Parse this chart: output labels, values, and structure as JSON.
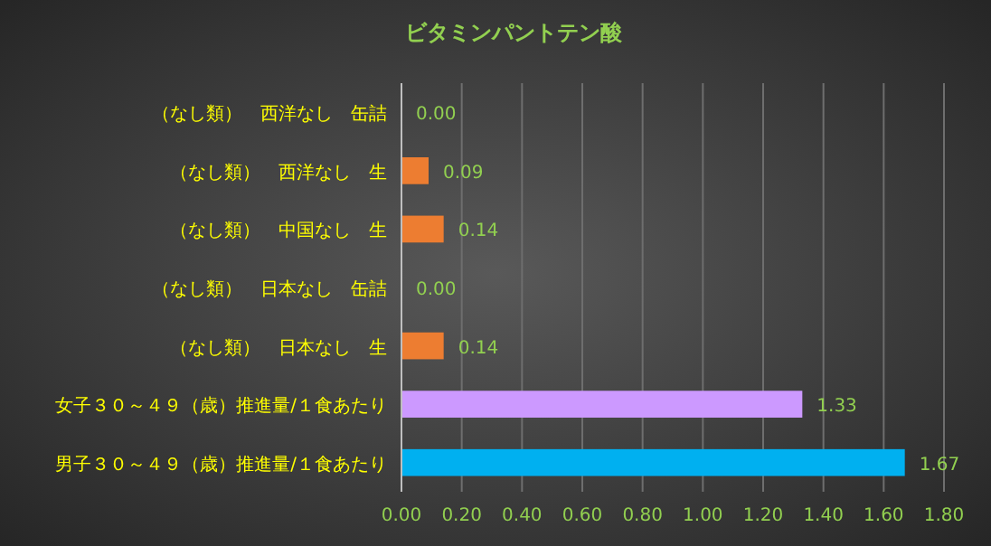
{
  "chart_data": {
    "type": "bar",
    "orientation": "horizontal",
    "title": "ビタミンパントテン酸",
    "categories": [
      "（なし類）　西洋なし　缶詰",
      "（なし類）　西洋なし　生",
      "（なし類）　中国なし　生",
      "（なし類）　日本なし　缶詰",
      "（なし類）　日本なし　生",
      "女子３０～４９（歳）推進量/１食あたり",
      "男子３０～４９（歳）推進量/１食あたり"
    ],
    "values": [
      0.0,
      0.09,
      0.14,
      0.0,
      0.14,
      1.33,
      1.67
    ],
    "colors": [
      "#ed7d31",
      "#ed7d31",
      "#ed7d31",
      "#ed7d31",
      "#ed7d31",
      "#cc99ff",
      "#00b0f0"
    ],
    "value_labels": [
      "0.00",
      "0.09",
      "0.14",
      "0.00",
      "0.14",
      "1.33",
      "1.67"
    ],
    "xlim": [
      0,
      1.8
    ],
    "xticks": [
      {
        "value": 0,
        "label": "0.00"
      },
      {
        "value": 0.2,
        "label": "0.20"
      },
      {
        "value": 0.4,
        "label": "0.40"
      },
      {
        "value": 0.6,
        "label": "0.60"
      },
      {
        "value": 0.8,
        "label": "0.80"
      },
      {
        "value": 1.0,
        "label": "1.00"
      },
      {
        "value": 1.2,
        "label": "1.20"
      },
      {
        "value": 1.4,
        "label": "1.40"
      },
      {
        "value": 1.6,
        "label": "1.60"
      },
      {
        "value": 1.8,
        "label": "1.80"
      }
    ],
    "grid": "x"
  }
}
